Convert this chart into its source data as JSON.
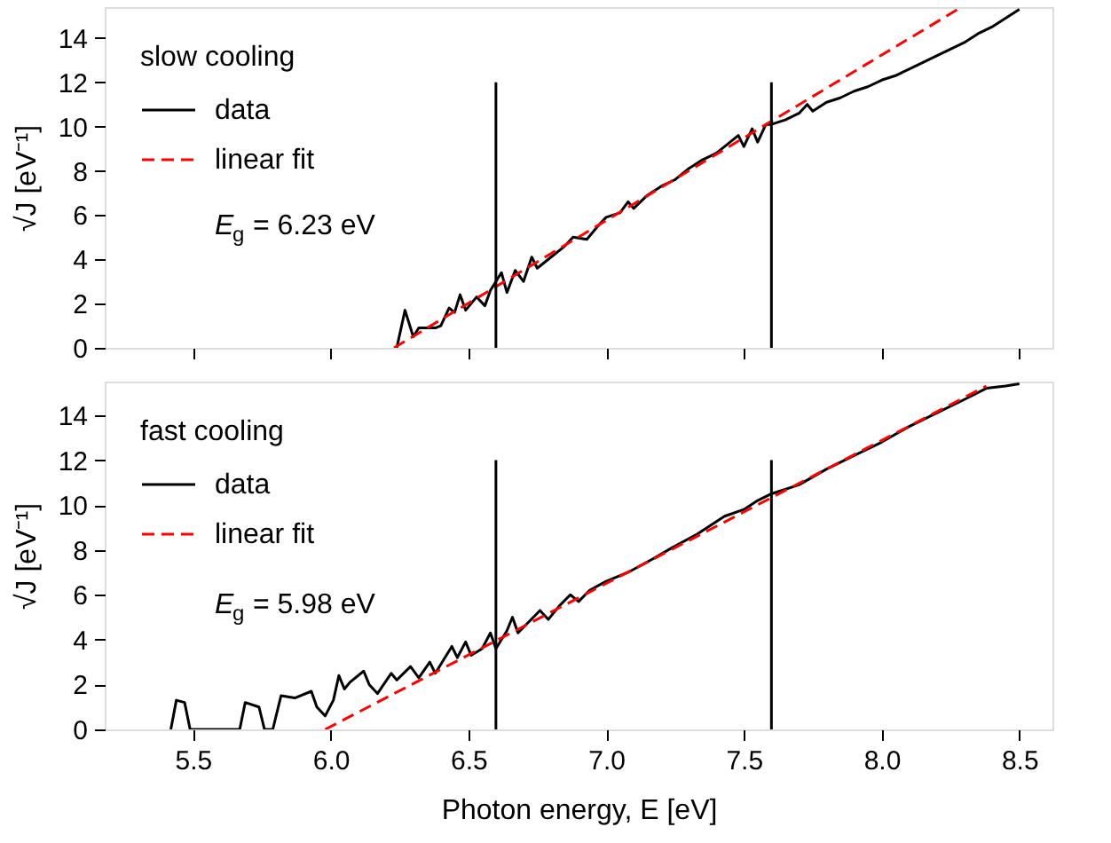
{
  "chart_data": [
    {
      "type": "line",
      "ylabel": "√J [eV⁻¹]",
      "legend_title": "slow cooling",
      "legend": "top left",
      "grid": false,
      "tick_labels": "y",
      "xlim": [
        5.18,
        8.62
      ],
      "xticks": [
        5.5,
        6,
        6.5,
        7,
        7.5,
        8,
        8.5
      ],
      "ylim": [
        0,
        15.4
      ],
      "yticks": [
        0,
        2,
        4,
        6,
        8,
        10,
        12,
        14
      ],
      "annotations": [
        "E$_{g}$ = 6.23 eV"
      ],
      "series": [
        {
          "name": "data",
          "color": "#000000",
          "line_style": "solid",
          "x": [
            6.24,
            6.27,
            6.3,
            6.32,
            6.38,
            6.4,
            6.43,
            6.45,
            6.47,
            6.49,
            6.53,
            6.56,
            6.58,
            6.6,
            6.62,
            6.64,
            6.67,
            6.7,
            6.73,
            6.75,
            6.8,
            6.85,
            6.88,
            6.93,
            6.97,
            7.0,
            7.05,
            7.08,
            7.1,
            7.15,
            7.2,
            7.25,
            7.3,
            7.35,
            7.4,
            7.45,
            7.48,
            7.5,
            7.53,
            7.55,
            7.58,
            7.6,
            7.65,
            7.7,
            7.73,
            7.75,
            7.8,
            7.85,
            7.9,
            7.95,
            8.0,
            8.05,
            8.1,
            8.15,
            8.2,
            8.25,
            8.3,
            8.35,
            8.4,
            8.45,
            8.5
          ],
          "values": [
            0,
            1.7,
            0.5,
            0.9,
            0.9,
            1.0,
            1.8,
            1.6,
            2.4,
            1.7,
            2.3,
            1.9,
            2.6,
            3.0,
            3.4,
            2.5,
            3.5,
            3.0,
            4.1,
            3.6,
            4.1,
            4.6,
            5.0,
            4.9,
            5.5,
            5.9,
            6.1,
            6.6,
            6.3,
            6.9,
            7.3,
            7.6,
            8.1,
            8.5,
            8.8,
            9.3,
            9.6,
            9.1,
            9.9,
            9.3,
            10.1,
            10.1,
            10.3,
            10.6,
            11.0,
            10.7,
            11.1,
            11.3,
            11.6,
            11.8,
            12.1,
            12.3,
            12.6,
            12.9,
            13.2,
            13.5,
            13.8,
            14.2,
            14.5,
            14.9,
            15.3
          ]
        },
        {
          "name": "linear fit",
          "color": "#ff0000",
          "line_style": "dashed",
          "x": [
            6.23,
            8.29
          ],
          "values": [
            0,
            15.4
          ]
        },
        {
          "color": "#000000",
          "line_style": "solid",
          "x": [
            6.6,
            6.6
          ],
          "values": [
            0,
            12
          ]
        },
        {
          "color": "#000000",
          "line_style": "solid",
          "x": [
            7.6,
            7.6
          ],
          "values": [
            0,
            12
          ]
        }
      ]
    },
    {
      "type": "line",
      "xlabel": "Photon energy, E [eV]",
      "ylabel": "√J [eV⁻¹]",
      "legend_title": "fast cooling",
      "legend": "top left",
      "grid": false,
      "xlim": [
        5.18,
        8.62
      ],
      "xticks": [
        {
          "value": 5.5,
          "label": "5.5"
        },
        {
          "value": 6,
          "label": "6.0"
        },
        {
          "value": 6.5,
          "label": "6.5"
        },
        {
          "value": 7,
          "label": "7.0"
        },
        {
          "value": 7.5,
          "label": "7.5"
        },
        {
          "value": 8,
          "label": "8.0"
        },
        {
          "value": 8.5,
          "label": "8.5"
        }
      ],
      "ylim": [
        0,
        15.5
      ],
      "yticks": [
        0,
        2,
        4,
        6,
        8,
        10,
        12,
        14
      ],
      "annotations": [
        "E$_{g}$ = 5.98 eV"
      ],
      "series": [
        {
          "name": "data",
          "color": "#000000",
          "line_style": "solid",
          "x": [
            5.42,
            5.44,
            5.47,
            5.49,
            5.67,
            5.69,
            5.74,
            5.76,
            5.79,
            5.82,
            5.87,
            5.93,
            5.95,
            5.98,
            6.01,
            6.03,
            6.05,
            6.07,
            6.12,
            6.14,
            6.17,
            6.22,
            6.24,
            6.29,
            6.32,
            6.36,
            6.38,
            6.44,
            6.46,
            6.49,
            6.51,
            6.55,
            6.58,
            6.6,
            6.64,
            6.66,
            6.68,
            6.76,
            6.79,
            6.83,
            6.87,
            6.9,
            6.94,
            7.0,
            7.08,
            7.17,
            7.24,
            7.33,
            7.43,
            7.5,
            7.55,
            7.6,
            7.7,
            7.8,
            7.9,
            8.0,
            8.1,
            8.2,
            8.3,
            8.38,
            8.45,
            8.5
          ],
          "values": [
            0,
            1.3,
            1.2,
            0,
            0,
            1.2,
            1.0,
            0,
            0,
            1.5,
            1.4,
            1.7,
            1.0,
            0.6,
            1.3,
            2.4,
            1.8,
            2.1,
            2.6,
            2.0,
            1.6,
            2.5,
            2.2,
            2.8,
            2.3,
            3.0,
            2.5,
            3.7,
            3.2,
            3.9,
            3.3,
            3.6,
            4.3,
            3.6,
            4.4,
            5.0,
            4.3,
            5.3,
            4.9,
            5.5,
            6.0,
            5.7,
            6.2,
            6.6,
            7.0,
            7.6,
            8.1,
            8.7,
            9.5,
            9.8,
            10.2,
            10.5,
            10.9,
            11.6,
            12.2,
            12.8,
            13.5,
            14.1,
            14.7,
            15.2,
            15.3,
            15.4
          ]
        },
        {
          "name": "linear fit",
          "color": "#ff0000",
          "line_style": "dashed",
          "x": [
            5.98,
            8.38
          ],
          "values": [
            0,
            15.3
          ]
        },
        {
          "color": "#000000",
          "line_style": "solid",
          "x": [
            6.6,
            6.6
          ],
          "values": [
            0,
            12
          ]
        },
        {
          "color": "#000000",
          "line_style": "solid",
          "x": [
            7.6,
            7.6
          ],
          "values": [
            0,
            12
          ]
        }
      ]
    }
  ]
}
